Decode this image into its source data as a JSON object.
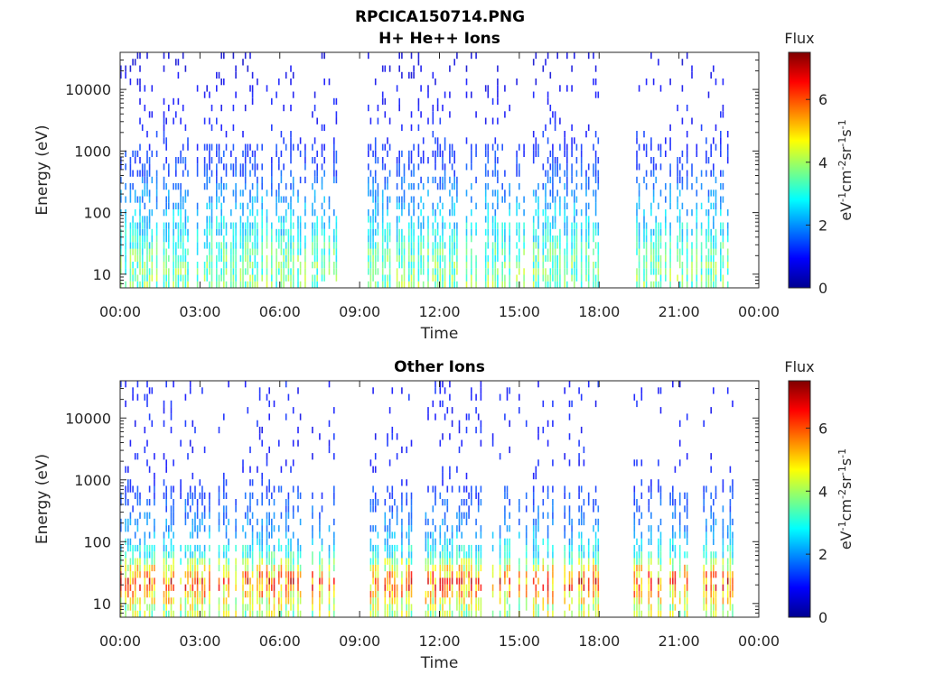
{
  "figure_title": "RPCICA150714.PNG",
  "colors": {
    "colormap": "jet",
    "axis": "#262626",
    "background": "#ffffff"
  },
  "chart_data": [
    {
      "type": "heatmap",
      "title": "H+ He++ Ions",
      "xlabel": "Time",
      "ylabel": "Energy (eV)",
      "x_tick_labels": [
        "00:00",
        "03:00",
        "06:00",
        "09:00",
        "12:00",
        "15:00",
        "18:00",
        "21:00",
        "00:00"
      ],
      "x_ticks_hours": [
        0,
        3,
        6,
        9,
        12,
        15,
        18,
        21,
        24
      ],
      "xlim_hours": [
        0,
        24
      ],
      "y_scale": "log",
      "y_tick_labels": [
        "10",
        "100",
        "1000",
        "10000"
      ],
      "y_ticks": [
        10,
        100,
        1000,
        10000
      ],
      "ylim": [
        6,
        40000
      ],
      "data_intervals_hours": [
        [
          0,
          8.1
        ],
        [
          9.3,
          18.0
        ],
        [
          19.3,
          23.0
        ]
      ],
      "colorbar": {
        "title": "Flux",
        "label": "eV-1cm-2sr-1s-1",
        "tick_labels": [
          "0",
          "2",
          "4",
          "6"
        ],
        "ticks": [
          0,
          2,
          4,
          6
        ],
        "range": [
          0,
          7.5
        ]
      },
      "flux_profile": [
        {
          "energy": 8,
          "flux": 3.6
        },
        {
          "energy": 20,
          "flux": 3.4
        },
        {
          "energy": 50,
          "flux": 2.7
        },
        {
          "energy": 120,
          "flux": 2.2
        },
        {
          "energy": 500,
          "flux": 1.4
        },
        {
          "energy": 3000,
          "flux": 1.0
        },
        {
          "energy": 15000,
          "flux": 0.8
        },
        {
          "energy": 35000,
          "flux": 0.6
        }
      ]
    },
    {
      "type": "heatmap",
      "title": "Other Ions",
      "xlabel": "Time",
      "ylabel": "Energy (eV)",
      "x_tick_labels": [
        "00:00",
        "03:00",
        "06:00",
        "09:00",
        "12:00",
        "15:00",
        "18:00",
        "21:00",
        "00:00"
      ],
      "x_ticks_hours": [
        0,
        3,
        6,
        9,
        12,
        15,
        18,
        21,
        24
      ],
      "xlim_hours": [
        0,
        24
      ],
      "y_scale": "log",
      "y_tick_labels": [
        "10",
        "100",
        "1000",
        "10000"
      ],
      "y_ticks": [
        10,
        100,
        1000,
        10000
      ],
      "ylim": [
        6,
        40000
      ],
      "data_intervals_hours": [
        [
          0,
          8.1
        ],
        [
          9.3,
          18.0
        ],
        [
          19.3,
          23.0
        ]
      ],
      "colorbar": {
        "title": "Flux",
        "label": "eV-1cm-2sr-1s-1",
        "tick_labels": [
          "0",
          "2",
          "4",
          "6"
        ],
        "ticks": [
          0,
          2,
          4,
          6
        ],
        "range": [
          0,
          7.5
        ]
      },
      "flux_profile": [
        {
          "energy": 8,
          "flux": 4.0
        },
        {
          "energy": 14,
          "flux": 5.0
        },
        {
          "energy": 22,
          "flux": 6.0
        },
        {
          "energy": 35,
          "flux": 4.8
        },
        {
          "energy": 60,
          "flux": 3.0
        },
        {
          "energy": 150,
          "flux": 2.0
        },
        {
          "energy": 400,
          "flux": 1.5
        },
        {
          "energy": 1500,
          "flux": 1.0
        }
      ]
    }
  ]
}
